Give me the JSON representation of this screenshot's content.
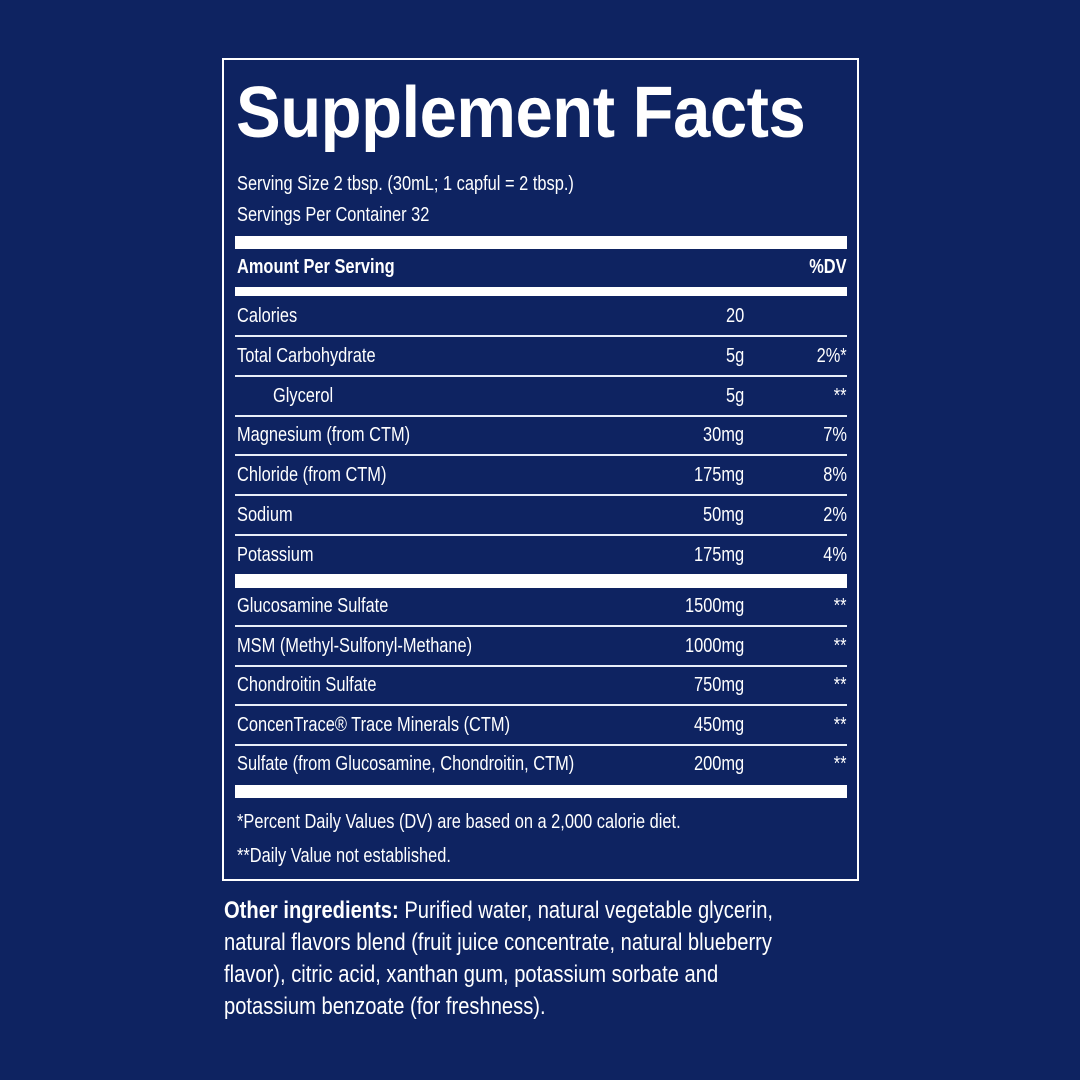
{
  "title": "Supplement Facts",
  "serving_size": "Serving Size 2 tbsp. (30mL; 1 capful = 2 tbsp.)",
  "servings_per_container": "Servings Per Container 32",
  "header": {
    "amount": "Amount Per Serving",
    "dv": "%DV"
  },
  "group1": [
    {
      "name": "Calories",
      "amount": "20",
      "dv": ""
    },
    {
      "name": "Total Carbohydrate",
      "amount": "5g",
      "dv": "2%*"
    },
    {
      "name": "Glycerol",
      "amount": "5g",
      "dv": "**",
      "indent": true
    },
    {
      "name": "Magnesium (from CTM)",
      "amount": "30mg",
      "dv": "7%"
    },
    {
      "name": "Chloride (from CTM)",
      "amount": "175mg",
      "dv": "8%"
    },
    {
      "name": "Sodium",
      "amount": "50mg",
      "dv": "2%"
    },
    {
      "name": "Potassium",
      "amount": "175mg",
      "dv": "4%"
    }
  ],
  "group2": [
    {
      "name": "Glucosamine Sulfate",
      "amount": "1500mg",
      "dv": "**"
    },
    {
      "name": "MSM (Methyl-Sulfonyl-Methane)",
      "amount": "1000mg",
      "dv": "**"
    },
    {
      "name": "Chondroitin Sulfate",
      "amount": "750mg",
      "dv": "**"
    },
    {
      "name": "ConcenTrace® Trace Minerals (CTM)",
      "amount": "450mg",
      "dv": "**"
    },
    {
      "name": "Sulfate (from Glucosamine, Chondroitin, CTM)",
      "amount": "200mg",
      "dv": "**"
    }
  ],
  "footnotes": [
    "*Percent Daily Values (DV) are based on a 2,000 calorie diet.",
    "**Daily Value not established."
  ],
  "other_ingredients": {
    "label": "Other ingredients:",
    "lines": [
      "Purified water, natural vegetable glycerin,",
      "natural flavors blend (fruit juice concentrate, natural blueberry",
      "flavor), citric acid, xanthan gum, potassium sorbate and",
      "potassium benzoate (for freshness)."
    ]
  },
  "colors": {
    "background": "#0e2361",
    "foreground": "#ffffff"
  }
}
